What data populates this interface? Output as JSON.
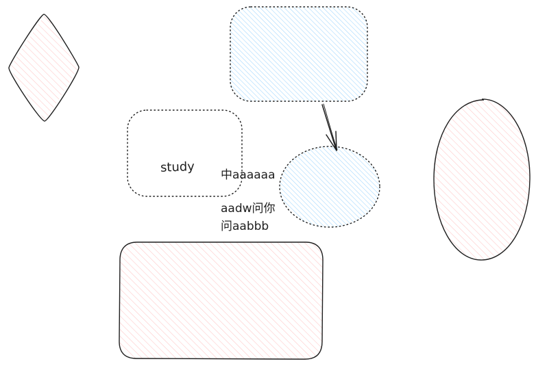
{
  "colors": {
    "pink_fill": "#ffc9c9",
    "blue_fill": "#a5d8ff",
    "stroke": "#1e1e1e"
  },
  "shapes": {
    "diamond": {
      "fill": "pink",
      "stroke": "solid"
    },
    "blue_rect": {
      "fill": "blue",
      "stroke": "dotted"
    },
    "study_rect": {
      "fill": "none",
      "stroke": "dotted",
      "label": "study"
    },
    "blue_circle": {
      "fill": "blue",
      "stroke": "dotted"
    },
    "pink_ellipse": {
      "fill": "pink",
      "stroke": "solid"
    },
    "pink_rect": {
      "fill": "pink",
      "stroke": "solid"
    }
  },
  "connectors": {
    "arrow": {
      "from": "blue_rect",
      "to": "blue_circle"
    }
  },
  "texts": {
    "text1": "中aaaaaa",
    "text2": "aadw问你",
    "text3": "问aabbb"
  }
}
